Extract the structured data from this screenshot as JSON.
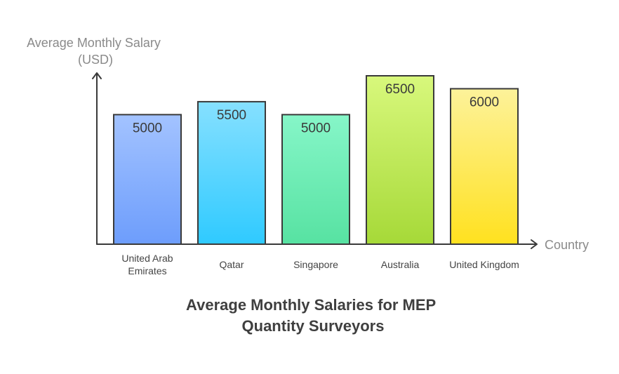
{
  "chart_data": {
    "type": "bar",
    "title": [
      "Average Monthly Salaries for MEP",
      "Quantity Surveyors"
    ],
    "ylabel": [
      "Average Monthly Salary",
      "(USD)"
    ],
    "xlabel": "Country",
    "categories": [
      [
        "United Arab",
        "Emirates"
      ],
      [
        "Qatar"
      ],
      [
        "Singapore"
      ],
      [
        "Australia"
      ],
      [
        "United Kingdom"
      ]
    ],
    "values": [
      5000,
      5500,
      5000,
      6500,
      6000
    ],
    "value_labels": [
      "5000",
      "5500",
      "5000",
      "6500",
      "6000"
    ],
    "bar_colors": [
      [
        "#a3c3ff",
        "#6d9dfc"
      ],
      [
        "#86e0ff",
        "#2fcaff"
      ],
      [
        "#86f6c8",
        "#57e2a2"
      ],
      [
        "#d8f87c",
        "#a6d938"
      ],
      [
        "#fdf29a",
        "#ffe11f"
      ]
    ],
    "ylim": [
      0,
      6500
    ],
    "grid": false,
    "legend": "none"
  }
}
